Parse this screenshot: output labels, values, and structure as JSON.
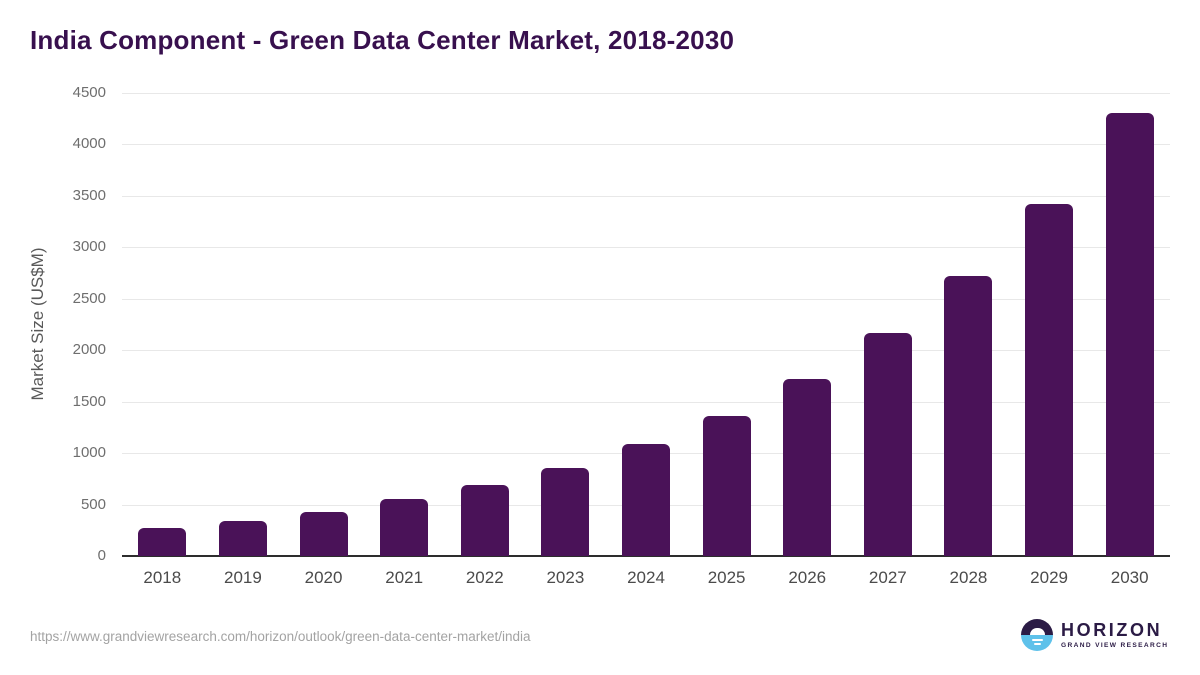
{
  "title": "India Component - Green Data Center Market, 2018-2030",
  "source_url": "https://www.grandviewresearch.com/horizon/outlook/green-data-center-market/india",
  "logo": {
    "brand": "HORIZON",
    "tagline": "GRAND VIEW RESEARCH"
  },
  "colors": {
    "bar": "#4a1258",
    "title": "#38104e",
    "gridline": "#e8e8e8",
    "axis_line": "#2d2d2d",
    "y_tick_label": "#6e6e6e",
    "x_tick_label": "#4b4b4b",
    "axis_title": "#595959",
    "source_url": "#a3a3a3",
    "logo_dark": "#2b1b45",
    "logo_blue": "#5ec1ea"
  },
  "chart_data": {
    "type": "bar",
    "title": "India Component - Green Data Center Market, 2018-2030",
    "categories": [
      "2018",
      "2019",
      "2020",
      "2021",
      "2022",
      "2023",
      "2024",
      "2025",
      "2026",
      "2027",
      "2028",
      "2029",
      "2030"
    ],
    "values": [
      275,
      345,
      430,
      550,
      690,
      860,
      1085,
      1360,
      1725,
      2170,
      2725,
      3425,
      4310
    ],
    "xlabel": "",
    "ylabel": "Market Size (US$M)",
    "ylim": [
      0,
      4500
    ],
    "ytick_step": 500,
    "grid": "horizontal-only",
    "legend": false,
    "bar_corner_radius": "rounded-top"
  }
}
